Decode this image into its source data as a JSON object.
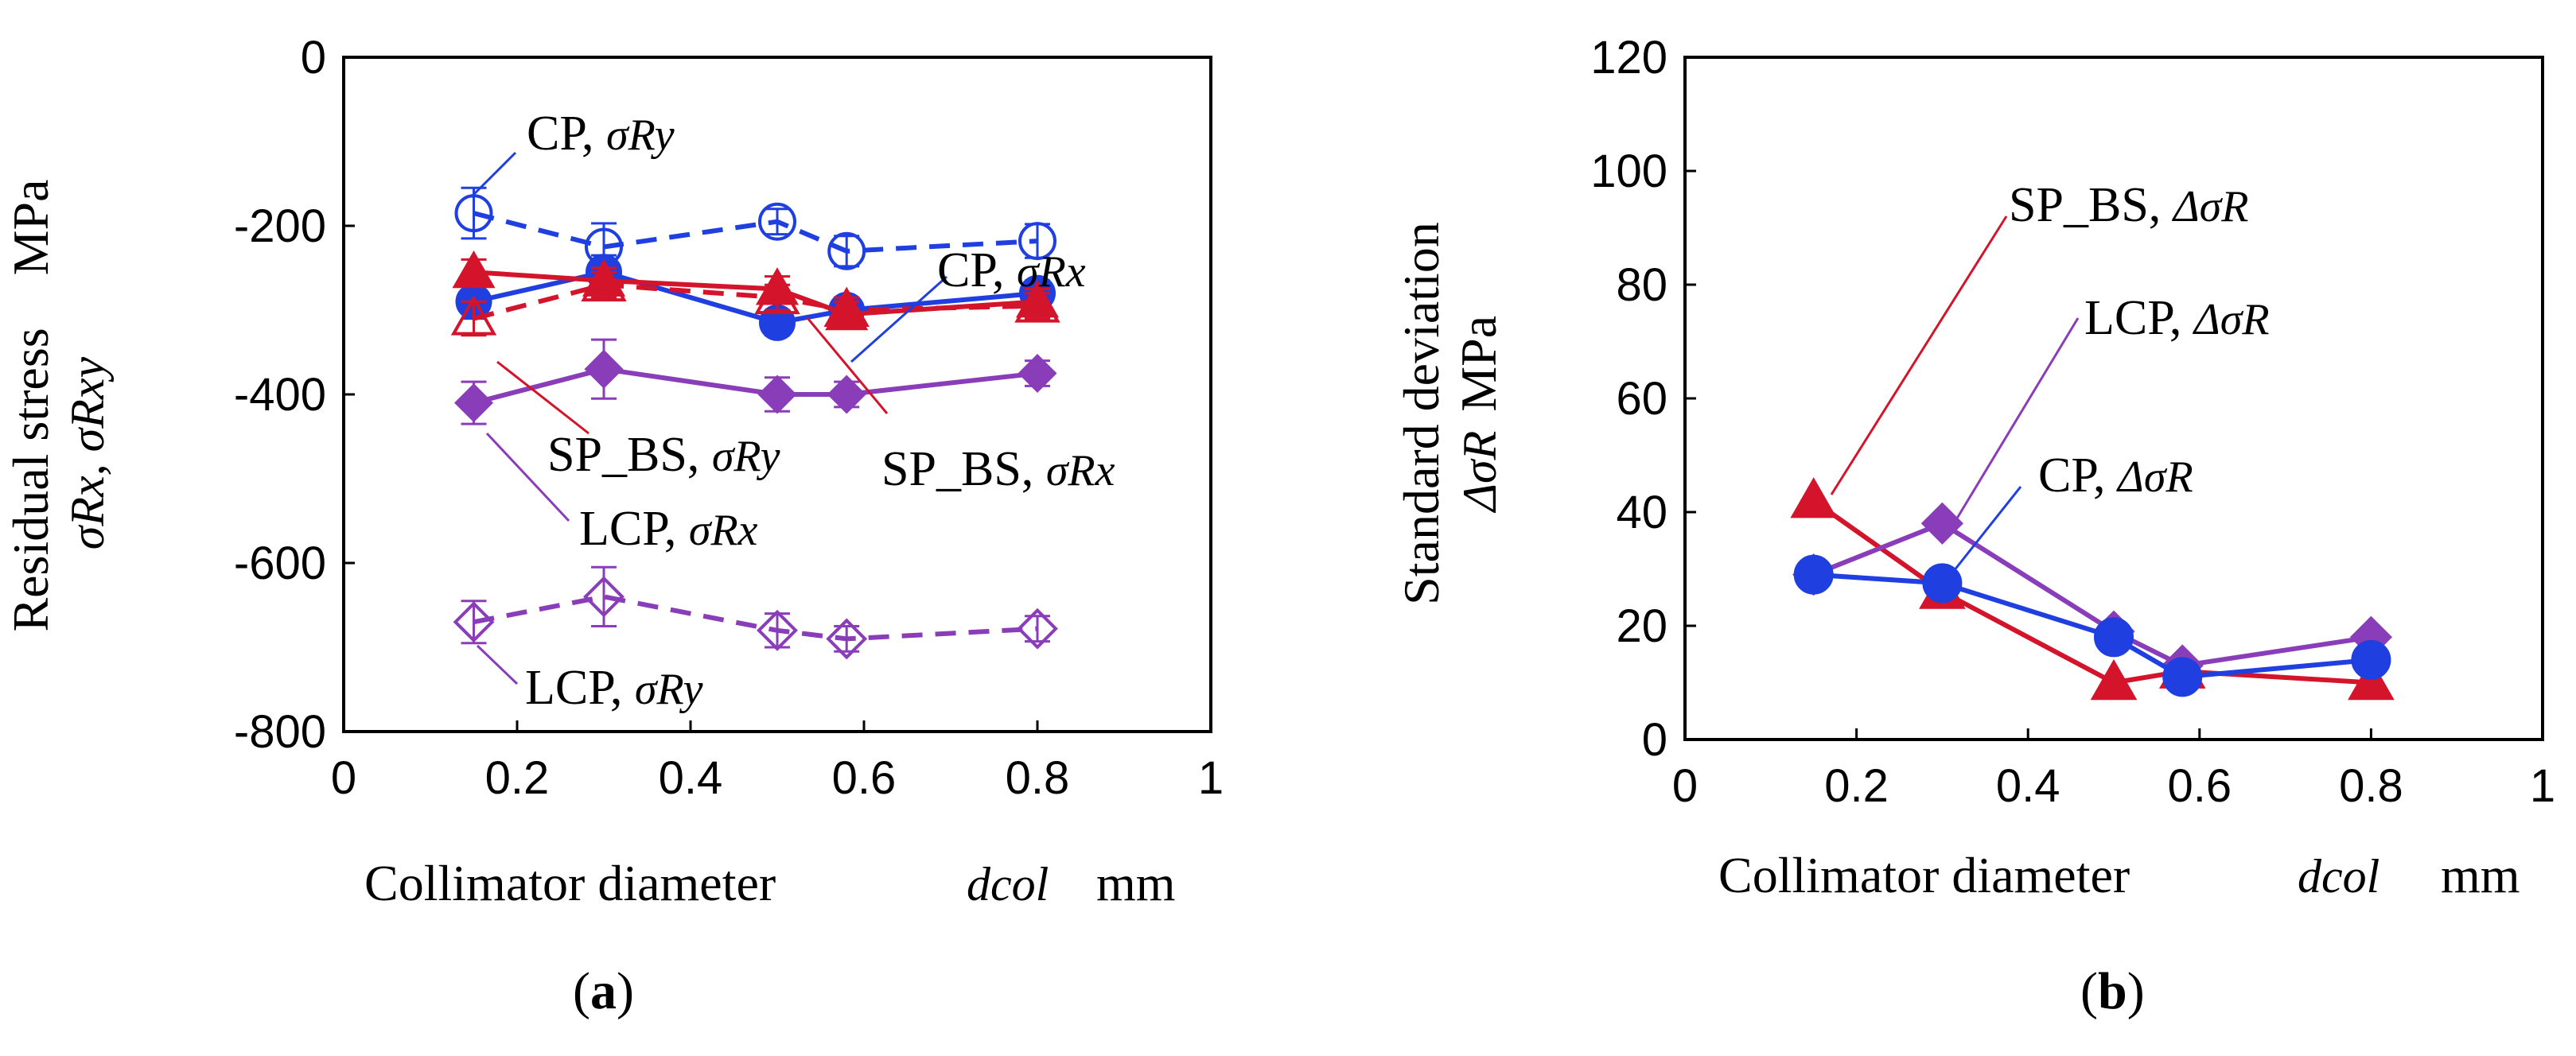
{
  "colors": {
    "cp": "#1f3fe0",
    "sp_bs": "#d4142a",
    "lcp": "#8a3db8"
  },
  "chart_data": [
    {
      "panel": "(a)",
      "panel_open": "(",
      "panel_letter": "a",
      "panel_close": ")",
      "type": "line",
      "xlim": [
        0,
        1
      ],
      "ylim": [
        -800,
        0
      ],
      "xticks": [
        "0",
        "0.2",
        "0.4",
        "0.6",
        "0.8",
        "1"
      ],
      "yticks": [
        "0",
        "-200",
        "-400",
        "-600",
        "-800"
      ],
      "xlabel": "Collimator diameter",
      "xlabel_symbol": "dcol",
      "xlabel_unit": "mm",
      "ylabel_line1": "Residual stress",
      "ylabel_line1_unit": "MPa",
      "ylabel_line2": "σRx, σRxy",
      "series": [
        {
          "name": "CP, σRy",
          "color": "cp",
          "marker": "circle",
          "filled": false,
          "dashed": true,
          "x": [
            0.15,
            0.3,
            0.5,
            0.58,
            0.8
          ],
          "y": [
            -185,
            -225,
            -195,
            -230,
            -218
          ],
          "err": [
            30,
            28,
            15,
            18,
            20
          ]
        },
        {
          "name": "CP, σRx",
          "color": "cp",
          "marker": "circle",
          "filled": true,
          "dashed": false,
          "x": [
            0.15,
            0.3,
            0.5,
            0.58,
            0.8
          ],
          "y": [
            -290,
            -255,
            -315,
            -300,
            -280
          ],
          "err": [
            20,
            20,
            15,
            15,
            15
          ]
        },
        {
          "name": "SP_BS, σRy",
          "color": "sp_bs",
          "marker": "triangle",
          "filled": false,
          "dashed": true,
          "x": [
            0.15,
            0.3,
            0.5,
            0.58,
            0.8
          ],
          "y": [
            -310,
            -270,
            -285,
            -300,
            -295
          ],
          "err": [
            20,
            15,
            15,
            15,
            15
          ]
        },
        {
          "name": "SP_BS, σRx",
          "color": "sp_bs",
          "marker": "triangle",
          "filled": true,
          "dashed": false,
          "x": [
            0.15,
            0.3,
            0.5,
            0.58,
            0.8
          ],
          "y": [
            -255,
            -265,
            -275,
            -305,
            -290
          ],
          "err": [
            15,
            15,
            15,
            15,
            15
          ]
        },
        {
          "name": "LCP, σRx",
          "color": "lcp",
          "marker": "diamond",
          "filled": true,
          "dashed": false,
          "x": [
            0.15,
            0.3,
            0.5,
            0.58,
            0.8
          ],
          "y": [
            -410,
            -370,
            -400,
            -400,
            -375
          ],
          "err": [
            25,
            35,
            20,
            15,
            15
          ]
        },
        {
          "name": "LCP, σRy",
          "color": "lcp",
          "marker": "diamond",
          "filled": false,
          "dashed": true,
          "x": [
            0.15,
            0.3,
            0.5,
            0.58,
            0.8
          ],
          "y": [
            -670,
            -640,
            -680,
            -690,
            -678
          ],
          "err": [
            25,
            35,
            20,
            15,
            15
          ]
        }
      ],
      "annotations": [
        {
          "main": "CP, ",
          "sym": "σRy"
        },
        {
          "main": "CP, ",
          "sym": "σRx"
        },
        {
          "main": "SP_BS, ",
          "sym": "σRy"
        },
        {
          "main": "SP_BS, ",
          "sym": "σRx"
        },
        {
          "main": "LCP, ",
          "sym": "σRx"
        },
        {
          "main": "LCP, ",
          "sym": "σRy"
        }
      ]
    },
    {
      "panel": "(b)",
      "panel_open": "(",
      "panel_letter": "b",
      "panel_close": ")",
      "type": "line",
      "xlim": [
        0,
        1
      ],
      "ylim": [
        0,
        120
      ],
      "xticks": [
        "0",
        "0.2",
        "0.4",
        "0.6",
        "0.8",
        "1"
      ],
      "yticks": [
        "0",
        "20",
        "40",
        "60",
        "80",
        "100",
        "120"
      ],
      "xlabel": "Collimator diameter",
      "xlabel_symbol": "dcol",
      "xlabel_unit": "mm",
      "ylabel_line1": "Standard deviation",
      "ylabel_line2": "ΔσR",
      "ylabel_line2_unit": "MPa",
      "series": [
        {
          "name": "SP_BS, ΔσR",
          "color": "sp_bs",
          "marker": "triangle",
          "filled": true,
          "dashed": false,
          "x": [
            0.15,
            0.3,
            0.5,
            0.58,
            0.8
          ],
          "y": [
            42,
            26,
            10,
            12,
            10
          ]
        },
        {
          "name": "LCP, ΔσR",
          "color": "lcp",
          "marker": "diamond",
          "filled": true,
          "dashed": false,
          "x": [
            0.15,
            0.3,
            0.5,
            0.58,
            0.8
          ],
          "y": [
            29,
            38,
            19,
            13,
            18
          ]
        },
        {
          "name": "CP, ΔσR",
          "color": "cp",
          "marker": "circle",
          "filled": true,
          "dashed": false,
          "x": [
            0.15,
            0.3,
            0.5,
            0.58,
            0.8
          ],
          "y": [
            29,
            27.5,
            18,
            11,
            14
          ]
        }
      ],
      "annotations": [
        {
          "main": "SP_BS, ",
          "sym": "ΔσR"
        },
        {
          "main": "LCP, ",
          "sym": "ΔσR"
        },
        {
          "main": "CP, ",
          "sym": "ΔσR"
        }
      ]
    }
  ]
}
